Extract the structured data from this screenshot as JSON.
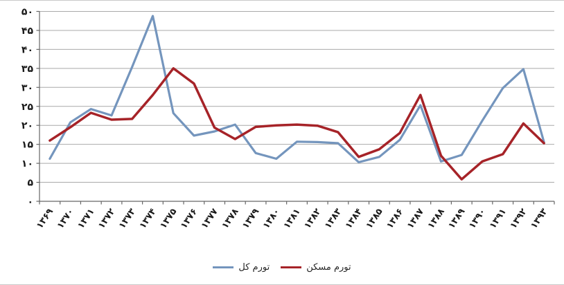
{
  "chart_data": {
    "type": "line",
    "title": "",
    "xlabel": "",
    "ylabel": "",
    "categories": [
      "۱۳۶۹",
      "۱۳۷۰",
      "۱۳۷۱",
      "۱۳۷۲",
      "۱۳۷۳",
      "۱۳۷۴",
      "۱۳۷۵",
      "۱۳۷۶",
      "۱۳۷۷",
      "۱۳۷۸",
      "۱۳۷۹",
      "۱۳۸۰",
      "۱۳۸۱",
      "۱۳۸۲",
      "۱۳۸۳",
      "۱۳۸۴",
      "۱۳۸۵",
      "۱۳۸۶",
      "۱۳۸۷",
      "۱۳۸۸",
      "۱۳۸۹",
      "۱۳۹۰",
      "۱۳۹۱",
      "۱۳۹۲",
      "۱۳۹۳"
    ],
    "series": [
      {
        "name": "تورم کل",
        "color": "#7495BD",
        "stroke_width": 3.2,
        "values": [
          11.2,
          20.8,
          24.3,
          22.6,
          35.4,
          48.8,
          23.2,
          17.3,
          18.4,
          20.2,
          12.7,
          11.2,
          15.7,
          15.6,
          15.3,
          10.3,
          11.7,
          16.2,
          25.3,
          10.5,
          12.2,
          21.2,
          29.8,
          34.8,
          15.6
        ]
      },
      {
        "name": "تورم مسکن",
        "color": "#A62328",
        "stroke_width": 3.5,
        "values": [
          16.0,
          19.5,
          23.3,
          21.5,
          21.7,
          28.0,
          35.0,
          31.0,
          19.4,
          16.4,
          19.6,
          20.0,
          20.2,
          19.9,
          18.2,
          11.7,
          13.7,
          18.0,
          28.0,
          12.0,
          5.8,
          10.5,
          12.4,
          20.5,
          15.3
        ]
      }
    ],
    "ylim": [
      0,
      50
    ],
    "ytick_step": 5,
    "ytick_labels": [
      "۰",
      "۵",
      "۱۰",
      "۱۵",
      "۲۰",
      "۲۵",
      "۳۰",
      "۳۵",
      "۴۰",
      "۴۵",
      "۵۰"
    ],
    "grid": "horizontal",
    "legend_position": "bottom-center",
    "colors": {
      "gridline": "#a9a9a9",
      "axis": "#666666",
      "tick_text": "#1a1a1a"
    }
  }
}
